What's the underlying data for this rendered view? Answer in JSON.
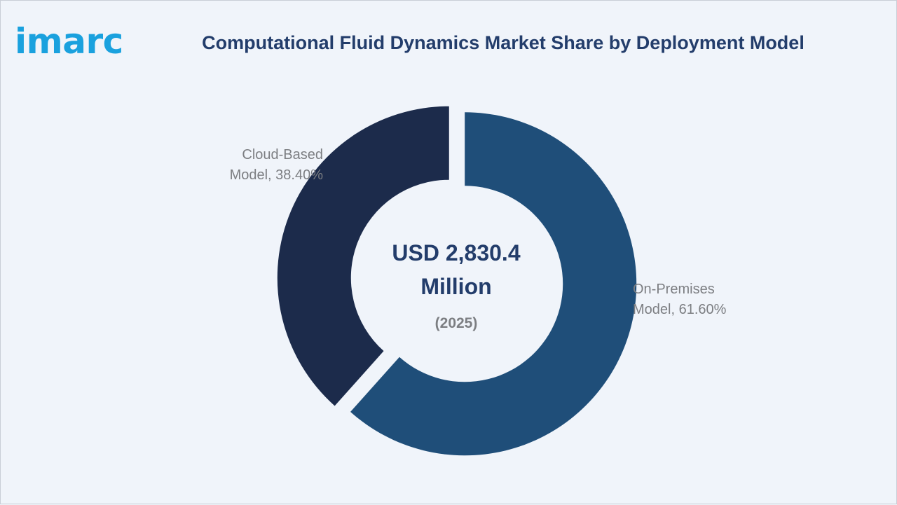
{
  "brand": {
    "logo_text": "imarc"
  },
  "chart_data": {
    "type": "pie",
    "title": "Computational Fluid Dynamics Market Share by Deployment Model",
    "center_label": {
      "value_line1": "USD 2,830.4",
      "value_line2": "Million",
      "year": "(2025)"
    },
    "slices": [
      {
        "label_line1": "On-Premises",
        "label_line2": "Model, 61.60%",
        "value": 61.6,
        "color": "#1f4e79"
      },
      {
        "label_line1": "Cloud-Based",
        "label_line2": "Model, 38.40%",
        "value": 38.4,
        "color": "#1c2b4b"
      }
    ]
  }
}
